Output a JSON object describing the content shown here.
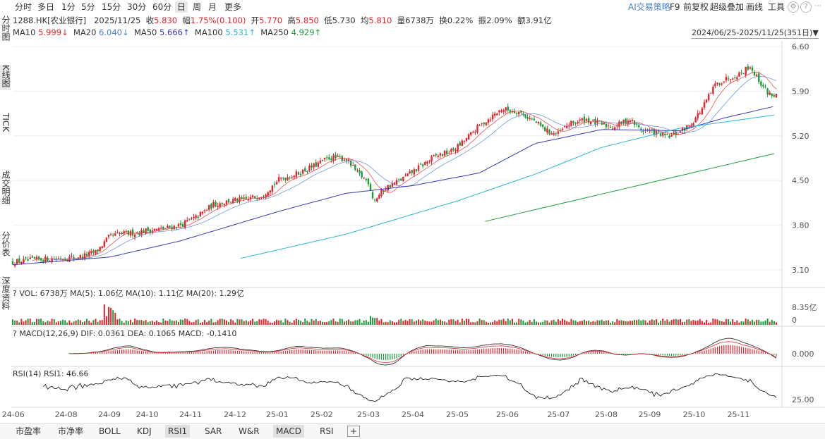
{
  "toolbar": {
    "tabs": [
      "分时",
      "多日",
      "1分",
      "5分",
      "15分",
      "30分",
      "60分",
      "日",
      "周",
      "月",
      "更多"
    ],
    "active_tab": "日",
    "right_tools": [
      "AI交易策略",
      "F9",
      "前复权",
      "超级叠加",
      "画线",
      "工具"
    ],
    "settings_icon": "gear-icon",
    "help_icon": "question-icon",
    "more_icon": "more-icon"
  },
  "quote": {
    "code_name": "1288.HK[农业银行]",
    "date": "2025/11/25",
    "close_label": "收",
    "close": "5.830",
    "change_label": "幅",
    "change": "1.75%(0.100)",
    "open_label": "开",
    "open": "5.770",
    "high_label": "高",
    "high": "5.850",
    "low_label": "低",
    "low": "5.730",
    "avg_label": "均",
    "avg": "5.810",
    "volume_label": "量",
    "volume": "6738万",
    "turnover_label": "换",
    "turnover": "0.22%",
    "amplitude_label": "振",
    "amplitude": "2.09%",
    "amount_label": "额",
    "amount": "3.91亿"
  },
  "ma_line": {
    "items": [
      {
        "label": "MA10",
        "value": "5.999↓",
        "color": "#e8232b"
      },
      {
        "label": "MA20",
        "value": "6.040↓",
        "color": "#4a7fd6"
      },
      {
        "label": "MA50",
        "value": "5.666↑",
        "color": "#3a3ab8"
      },
      {
        "label": "MA100",
        "value": "5.531↑",
        "color": "#2bb6d6"
      },
      {
        "label": "MA250",
        "value": "4.929↑",
        "color": "#1a9b3c"
      }
    ]
  },
  "date_range": "2024/06/25-2025/11/25(351日)▼",
  "side_tabs": [
    "分时图",
    "K线图",
    "TICK",
    "成交明细",
    "分价表",
    "深度资料"
  ],
  "side_active": "K线图",
  "panels": {
    "vol_label": "VOL: 6738万 MA(5): 1.06亿 MA(10): 1.11亿 MA(20): 1.29亿",
    "vol_axis": [
      "8.35亿",
      "0"
    ],
    "macd_label": "MACD(12,26,9) DIF: 0.0361 DEA: 0.1065 MACD: -0.1410",
    "macd_axis": [
      "0.000"
    ],
    "rsi_label": "RSI(14) RSI1: 46.66",
    "rsi_axis": [
      "25.00"
    ]
  },
  "bottom_tabs": [
    "市盈率",
    "市净率",
    "BOLL",
    "KDJ",
    "RSI1",
    "SAR",
    "W&R",
    "MACD",
    "RSI",
    "+"
  ],
  "bottom_active": [
    "RSI1",
    "MACD"
  ],
  "chart_data": {
    "type": "candlestick",
    "y_ticks": [
      3.1,
      3.8,
      4.5,
      5.2,
      5.9,
      6.6
    ],
    "ylim": [
      3.1,
      6.6
    ],
    "x_tick_labels": [
      "24-06",
      "24-08",
      "24-09",
      "24-10",
      "24-11",
      "24-12",
      "25-01",
      "25-02",
      "25-03",
      "25-04",
      "25-05",
      "25-06",
      "25-07",
      "25-08",
      "25-09",
      "25-10",
      "25-11"
    ],
    "x_tick_positions": [
      0.5,
      48,
      87,
      121,
      160,
      200,
      238,
      278,
      320,
      360,
      400,
      445,
      491,
      534,
      573,
      613,
      653
    ],
    "total_days": 351,
    "close_anchors": [
      [
        0,
        3.22
      ],
      [
        20,
        3.26
      ],
      [
        40,
        3.28
      ],
      [
        60,
        3.3
      ],
      [
        75,
        3.38
      ],
      [
        87,
        3.62
      ],
      [
        95,
        3.66
      ],
      [
        110,
        3.68
      ],
      [
        121,
        3.72
      ],
      [
        135,
        3.74
      ],
      [
        150,
        3.8
      ],
      [
        165,
        3.92
      ],
      [
        180,
        4.12
      ],
      [
        195,
        4.18
      ],
      [
        210,
        4.2
      ],
      [
        225,
        4.28
      ],
      [
        240,
        4.52
      ],
      [
        255,
        4.6
      ],
      [
        270,
        4.72
      ],
      [
        285,
        4.86
      ],
      [
        300,
        4.84
      ],
      [
        310,
        4.62
      ],
      [
        320,
        4.48
      ],
      [
        325,
        4.18
      ],
      [
        335,
        4.38
      ],
      [
        350,
        4.52
      ],
      [
        365,
        4.7
      ],
      [
        380,
        4.88
      ],
      [
        395,
        4.96
      ],
      [
        405,
        5.1
      ],
      [
        420,
        5.36
      ],
      [
        440,
        5.62
      ],
      [
        455,
        5.58
      ],
      [
        470,
        5.42
      ],
      [
        480,
        5.28
      ],
      [
        490,
        5.22
      ],
      [
        500,
        5.38
      ],
      [
        515,
        5.46
      ],
      [
        525,
        5.4
      ],
      [
        540,
        5.34
      ],
      [
        555,
        5.46
      ],
      [
        565,
        5.3
      ],
      [
        580,
        5.24
      ],
      [
        590,
        5.18
      ],
      [
        600,
        5.26
      ],
      [
        610,
        5.38
      ],
      [
        620,
        5.62
      ],
      [
        632,
        6.0
      ],
      [
        645,
        6.12
      ],
      [
        655,
        6.18
      ],
      [
        663,
        6.3
      ],
      [
        672,
        6.05
      ],
      [
        680,
        5.86
      ],
      [
        687,
        5.83
      ]
    ],
    "ma100_anchors": [
      [
        205,
        3.28
      ],
      [
        300,
        3.66
      ],
      [
        400,
        4.18
      ],
      [
        470,
        4.6
      ],
      [
        530,
        5.02
      ],
      [
        600,
        5.32
      ],
      [
        687,
        5.53
      ]
    ],
    "ma250_anchors": [
      [
        425,
        3.86
      ],
      [
        687,
        4.93
      ]
    ],
    "ma50_anchors": [
      [
        0,
        3.18
      ],
      [
        87,
        3.3
      ],
      [
        150,
        3.55
      ],
      [
        240,
        4.02
      ],
      [
        300,
        4.3
      ],
      [
        360,
        4.42
      ],
      [
        420,
        4.62
      ],
      [
        470,
        5.08
      ],
      [
        530,
        5.3
      ],
      [
        600,
        5.28
      ],
      [
        640,
        5.48
      ],
      [
        687,
        5.67
      ]
    ],
    "volume_range": [
      0,
      8.35
    ],
    "rsi_level": 25.0
  }
}
